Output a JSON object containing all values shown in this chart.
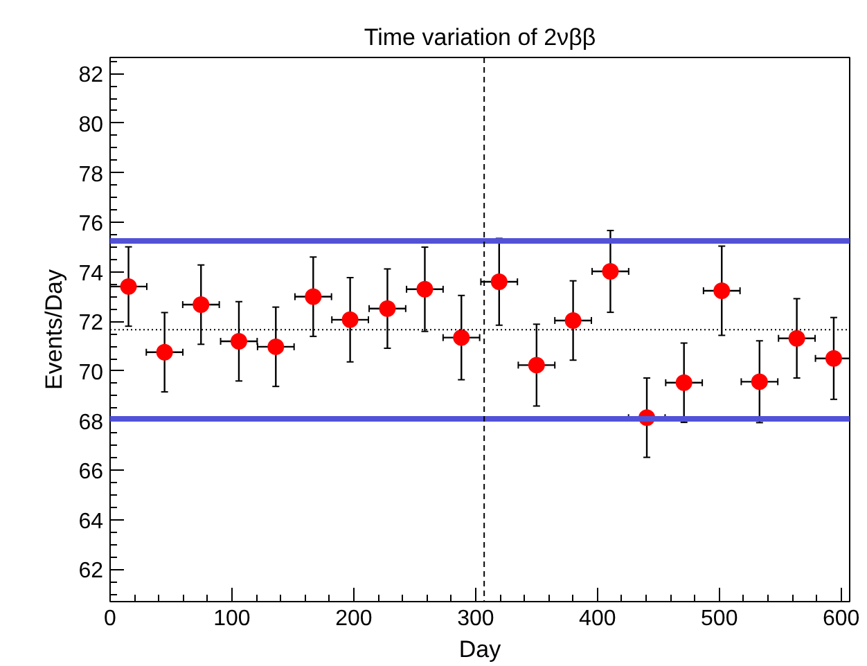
{
  "chart_data": {
    "type": "scatter",
    "title": "Time variation of 2νββ",
    "xlabel": "Day",
    "ylabel": "Events/Day",
    "x": [
      15.1,
      44.7,
      74.6,
      105.7,
      136,
      166.7,
      197,
      227.6,
      258.3,
      288.3,
      319.3,
      350,
      380,
      410.6,
      440.5,
      471,
      502,
      533,
      563.6,
      593.9
    ],
    "series": [
      {
        "color": "#ff0000",
        "values": [
          73.41,
          70.76,
          72.68,
          71.2,
          70.98,
          73.0,
          72.07,
          72.52,
          73.3,
          71.35,
          73.6,
          70.24,
          72.04,
          74.02,
          68.12,
          69.53,
          73.24,
          69.57,
          71.32,
          70.51
        ],
        "errors": [
          1.6,
          1.6,
          1.6,
          1.6,
          1.6,
          1.6,
          1.7,
          1.6,
          1.7,
          1.7,
          1.75,
          1.65,
          1.6,
          1.65,
          1.6,
          1.6,
          1.8,
          1.65,
          1.6,
          1.65
        ],
        "xerrors": [
          15,
          15,
          15,
          15,
          15,
          15,
          15,
          15,
          15,
          15,
          15,
          15,
          15,
          15,
          15,
          15,
          15,
          15,
          15,
          15
        ]
      }
    ],
    "marker": "circle",
    "grid": false,
    "xlim": [
      0,
      607
    ],
    "ylim": [
      60.7,
      82.65
    ],
    "xticks": [
      0,
      100,
      200,
      300,
      400,
      500,
      600
    ],
    "yticks": [
      62,
      64,
      66,
      68,
      70,
      72,
      74,
      76,
      78,
      80,
      82
    ],
    "ref_lines": [
      {
        "axis": "y",
        "value": 75.25,
        "color": "#5252d8",
        "line_style": "solid"
      },
      {
        "axis": "y",
        "value": 68.07,
        "color": "#5252d8",
        "line_style": "solid"
      },
      {
        "axis": "y",
        "value": 71.67,
        "color": "#000000",
        "line_style": "dotted"
      },
      {
        "axis": "x",
        "value": 307,
        "color": "#000000",
        "line_style": "dashed"
      }
    ]
  }
}
